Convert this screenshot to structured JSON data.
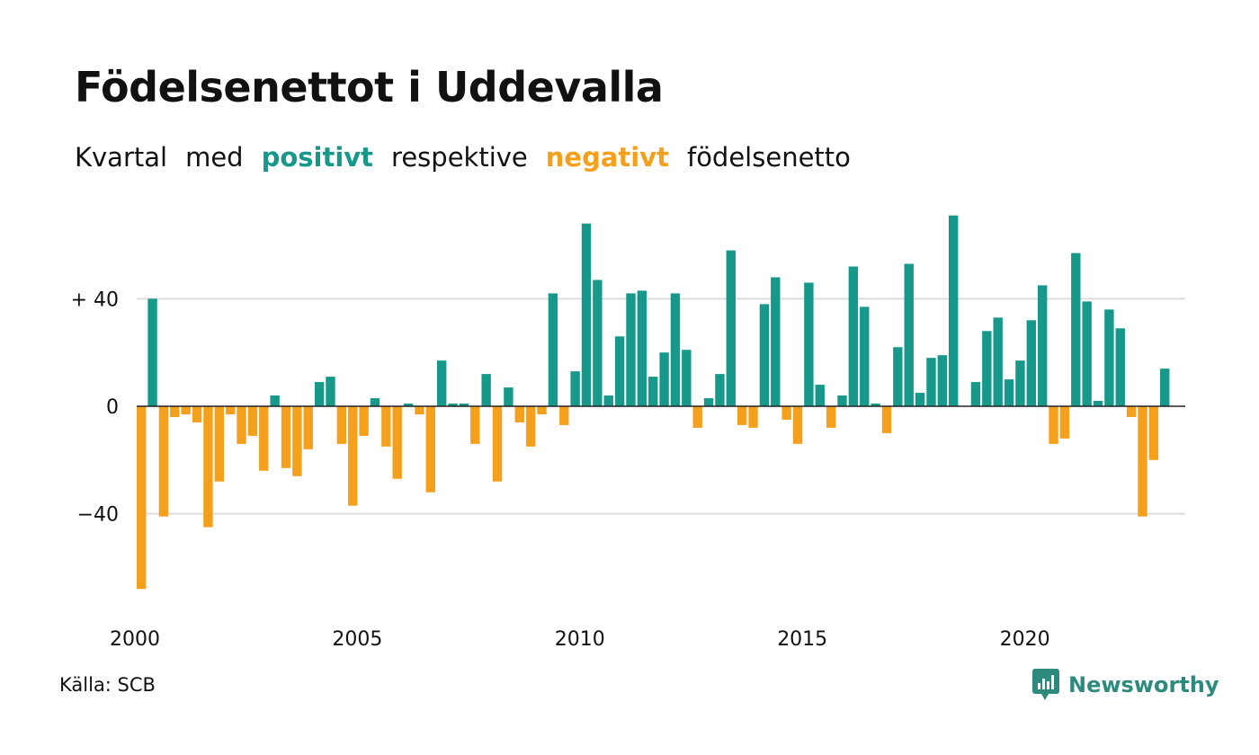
{
  "title": "Födelsenettot i Uddevalla",
  "subtitle": {
    "part1": "Kvartal",
    "part2": "med",
    "positive": "positivt",
    "part3": "respektive",
    "negative": "negativt",
    "part4": "födelsenetto"
  },
  "source": "Källa: SCB",
  "brand": "Newsworthy",
  "colors": {
    "positive": "#16998a",
    "negative": "#f5a01c",
    "grid": "#dddddd",
    "logo": "#2f8a7e"
  },
  "chart_data": {
    "type": "bar",
    "x_start": "2000 Q1",
    "x_ticks": [
      "2000",
      "2005",
      "2010",
      "2015",
      "2020"
    ],
    "y_ticks": [
      {
        "value": 40,
        "label": "+ 40"
      },
      {
        "value": 0,
        "label": "0"
      },
      {
        "value": -40,
        "label": "−40"
      }
    ],
    "ylim": [
      -70,
      72
    ],
    "values": [
      -68,
      40,
      -41,
      -4,
      -3,
      -6,
      -45,
      -28,
      -3,
      -14,
      -11,
      -24,
      4,
      -23,
      -26,
      -16,
      9,
      11,
      -14,
      -37,
      -11,
      3,
      -15,
      -27,
      1,
      -3,
      -32,
      17,
      1,
      1,
      -14,
      12,
      -28,
      7,
      -6,
      -15,
      -3,
      42,
      -7,
      13,
      68,
      47,
      4,
      26,
      42,
      43,
      11,
      20,
      42,
      21,
      -8,
      3,
      12,
      58,
      -7,
      -8,
      38,
      48,
      -5,
      -14,
      46,
      8,
      -8,
      4,
      52,
      37,
      1,
      -10,
      22,
      53,
      5,
      18,
      19,
      71,
      0,
      9,
      28,
      33,
      10,
      17,
      32,
      45,
      -14,
      -12,
      57,
      39,
      2,
      36,
      29,
      -4,
      -41,
      -20,
      14
    ]
  }
}
